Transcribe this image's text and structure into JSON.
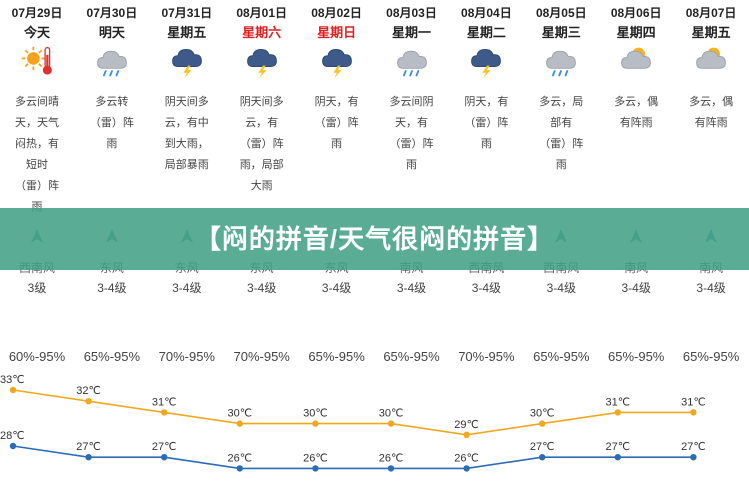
{
  "days": [
    {
      "date": "07月29日",
      "dow": "今天",
      "dow_red": false,
      "icon": "sun-thermometer-icon",
      "desc": "多云间晴\n天，天气\n闷热，有\n短时\n（雷）阵\n雨",
      "wind_dir": "西南风",
      "wind_level": "3级",
      "humidity": "60%-95%"
    },
    {
      "date": "07月30日",
      "dow": "明天",
      "dow_red": false,
      "icon": "cloud-rain-icon",
      "desc": "多云转\n（雷）阵\n雨",
      "wind_dir": "东风",
      "wind_level": "3-4级",
      "humidity": "65%-95%"
    },
    {
      "date": "07月31日",
      "dow": "星期五",
      "dow_red": false,
      "icon": "thunderstorm-icon",
      "desc": "阴天间多\n云，有中\n到大雨，\n局部暴雨",
      "wind_dir": "东风",
      "wind_level": "3-4级",
      "humidity": "70%-95%"
    },
    {
      "date": "08月01日",
      "dow": "星期六",
      "dow_red": true,
      "icon": "thunderstorm-icon",
      "desc": "阴天间多\n云，有\n（雷）阵\n雨，局部\n大雨",
      "wind_dir": "东风",
      "wind_level": "3-4级",
      "humidity": "70%-95%"
    },
    {
      "date": "08月02日",
      "dow": "星期日",
      "dow_red": true,
      "icon": "thunderstorm-icon",
      "desc": "阴天，有\n（雷）阵\n雨",
      "wind_dir": "东风",
      "wind_level": "3-4级",
      "humidity": "65%-95%"
    },
    {
      "date": "08月03日",
      "dow": "星期一",
      "dow_red": false,
      "icon": "cloud-rain-icon",
      "desc": "多云间阴\n天，有\n（雷）阵\n雨",
      "wind_dir": "南风",
      "wind_level": "3-4级",
      "humidity": "65%-95%"
    },
    {
      "date": "08月04日",
      "dow": "星期二",
      "dow_red": false,
      "icon": "thunderstorm-icon",
      "desc": "阴天，有\n（雷）阵\n雨",
      "wind_dir": "西南风",
      "wind_level": "3-4级",
      "humidity": "70%-95%"
    },
    {
      "date": "08月05日",
      "dow": "星期三",
      "dow_red": false,
      "icon": "cloud-rain-icon",
      "desc": "多云，局\n部有\n（雷）阵\n雨",
      "wind_dir": "西南风",
      "wind_level": "3-4级",
      "humidity": "65%-95%"
    },
    {
      "date": "08月06日",
      "dow": "星期四",
      "dow_red": false,
      "icon": "partly-cloudy-icon",
      "desc": "多云，偶\n有阵雨",
      "wind_dir": "南风",
      "wind_level": "3-4级",
      "humidity": "65%-95%"
    },
    {
      "date": "08月07日",
      "dow": "星期五",
      "dow_red": false,
      "icon": "partly-cloudy-icon",
      "desc": "多云，偶\n有阵雨",
      "wind_dir": "南风",
      "wind_level": "3-4级",
      "humidity": "65%-95%"
    }
  ],
  "banner": {
    "title": "【闷的拼音/天气很闷的拼音】"
  },
  "temps": {
    "high": [
      33,
      32,
      31,
      30,
      30,
      30,
      29,
      30,
      31,
      31
    ],
    "low": [
      28,
      27,
      27,
      26,
      26,
      26,
      26,
      27,
      27,
      27
    ],
    "unit": "℃",
    "high_color": "#f0a81e",
    "low_color": "#2b6cb6"
  },
  "colors": {
    "banner_bg": "#409e84",
    "weekend": "#e02020"
  }
}
